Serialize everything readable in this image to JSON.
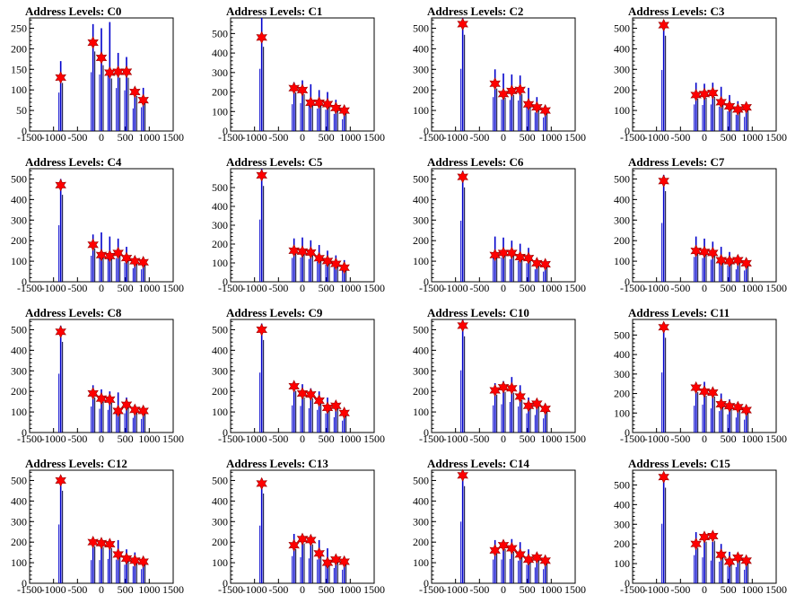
{
  "chart_data": [
    {
      "type": "bar",
      "title": "Address Levels: C0",
      "xlim": [
        -1500,
        1500
      ],
      "ylim": [
        0,
        275
      ],
      "yticks": [
        0,
        50,
        100,
        150,
        200,
        250
      ],
      "x": [
        -850,
        -175,
        0,
        175,
        350,
        525,
        700,
        875
      ],
      "values": [
        170,
        260,
        250,
        265,
        190,
        180,
        100,
        105
      ],
      "markers": [
        130,
        215,
        178,
        142,
        144,
        144,
        95,
        75
      ]
    },
    {
      "type": "bar",
      "title": "Address Levels: C1",
      "xlim": [
        -1500,
        1500
      ],
      "ylim": [
        0,
        580
      ],
      "yticks": [
        0,
        100,
        200,
        300,
        400,
        500
      ],
      "x": [
        -850,
        -175,
        0,
        175,
        350,
        525,
        700,
        875
      ],
      "values": [
        580,
        250,
        260,
        240,
        210,
        200,
        160,
        110
      ],
      "markers": [
        480,
        220,
        210,
        145,
        145,
        138,
        118,
        105
      ]
    },
    {
      "type": "bar",
      "title": "Address Levels: C2",
      "xlim": [
        -1500,
        1500
      ],
      "ylim": [
        0,
        550
      ],
      "yticks": [
        0,
        100,
        200,
        300,
        400,
        500
      ],
      "x": [
        -850,
        -175,
        0,
        175,
        350,
        525,
        700,
        875
      ],
      "values": [
        550,
        300,
        280,
        275,
        270,
        210,
        165,
        120
      ],
      "markers": [
        520,
        230,
        180,
        195,
        200,
        130,
        115,
        100
      ]
    },
    {
      "type": "bar",
      "title": "Address Levels: C3",
      "xlim": [
        -1500,
        1500
      ],
      "ylim": [
        0,
        550
      ],
      "yticks": [
        0,
        100,
        200,
        300,
        400,
        500
      ],
      "x": [
        -850,
        -175,
        0,
        175,
        350,
        525,
        700,
        875
      ],
      "values": [
        540,
        235,
        230,
        235,
        215,
        175,
        145,
        125
      ],
      "markers": [
        515,
        175,
        180,
        185,
        140,
        120,
        105,
        115
      ]
    },
    {
      "type": "bar",
      "title": "Address Levels: C4",
      "xlim": [
        -1500,
        1500
      ],
      "ylim": [
        0,
        550
      ],
      "yticks": [
        0,
        100,
        200,
        300,
        400,
        500
      ],
      "x": [
        -850,
        -175,
        0,
        175,
        350,
        525,
        700,
        875
      ],
      "values": [
        500,
        230,
        240,
        220,
        210,
        170,
        120,
        110
      ],
      "markers": [
        470,
        180,
        130,
        125,
        140,
        115,
        100,
        95
      ]
    },
    {
      "type": "bar",
      "title": "Address Levels: C5",
      "xlim": [
        -1500,
        1500
      ],
      "ylim": [
        0,
        600
      ],
      "yticks": [
        0,
        100,
        200,
        300,
        400,
        500
      ],
      "x": [
        -850,
        -175,
        0,
        175,
        350,
        525,
        700,
        875
      ],
      "values": [
        600,
        230,
        235,
        220,
        195,
        165,
        140,
        115
      ],
      "markers": [
        565,
        165,
        160,
        155,
        125,
        110,
        95,
        75
      ]
    },
    {
      "type": "bar",
      "title": "Address Levels: C6",
      "xlim": [
        -1500,
        1500
      ],
      "ylim": [
        0,
        550
      ],
      "yticks": [
        0,
        100,
        200,
        300,
        400,
        500
      ],
      "x": [
        -850,
        -175,
        0,
        175,
        350,
        525,
        700,
        875
      ],
      "values": [
        540,
        220,
        215,
        200,
        185,
        165,
        110,
        90
      ],
      "markers": [
        510,
        130,
        140,
        140,
        120,
        115,
        90,
        85
      ]
    },
    {
      "type": "bar",
      "title": "Address Levels: C7",
      "xlim": [
        -1500,
        1500
      ],
      "ylim": [
        0,
        550
      ],
      "yticks": [
        0,
        100,
        200,
        300,
        400,
        500
      ],
      "x": [
        -850,
        -175,
        0,
        175,
        350,
        525,
        700,
        875
      ],
      "values": [
        520,
        220,
        210,
        195,
        170,
        145,
        110,
        100
      ],
      "markers": [
        490,
        150,
        145,
        140,
        105,
        100,
        105,
        90
      ]
    },
    {
      "type": "bar",
      "title": "Address Levels: C8",
      "xlim": [
        -1500,
        1500
      ],
      "ylim": [
        0,
        550
      ],
      "yticks": [
        0,
        100,
        200,
        300,
        400,
        500
      ],
      "x": [
        -850,
        -175,
        0,
        175,
        350,
        525,
        700,
        875
      ],
      "values": [
        520,
        230,
        210,
        200,
        195,
        170,
        130,
        120
      ],
      "markers": [
        490,
        190,
        165,
        160,
        105,
        135,
        110,
        105
      ]
    },
    {
      "type": "bar",
      "title": "Address Levels: C9",
      "xlim": [
        -1500,
        1500
      ],
      "ylim": [
        0,
        550
      ],
      "yticks": [
        0,
        100,
        200,
        300,
        400,
        500
      ],
      "x": [
        -850,
        -175,
        0,
        175,
        350,
        525,
        700,
        875
      ],
      "values": [
        530,
        240,
        235,
        215,
        200,
        170,
        135,
        105
      ],
      "markers": [
        500,
        225,
        190,
        185,
        155,
        120,
        130,
        95
      ]
    },
    {
      "type": "bar",
      "title": "Address Levels: C10",
      "xlim": [
        -1500,
        1500
      ],
      "ylim": [
        0,
        550
      ],
      "yticks": [
        0,
        100,
        200,
        300,
        400,
        500
      ],
      "x": [
        -850,
        -175,
        0,
        175,
        350,
        525,
        700,
        875
      ],
      "values": [
        550,
        240,
        250,
        270,
        230,
        170,
        155,
        125
      ],
      "markers": [
        520,
        205,
        220,
        215,
        175,
        130,
        140,
        115
      ]
    },
    {
      "type": "bar",
      "title": "Address Levels: C11",
      "xlim": [
        -1500,
        1500
      ],
      "ylim": [
        0,
        580
      ],
      "yticks": [
        0,
        100,
        200,
        300,
        400,
        500
      ],
      "x": [
        -850,
        -175,
        0,
        175,
        350,
        525,
        700,
        875
      ],
      "values": [
        560,
        250,
        260,
        225,
        200,
        170,
        140,
        120
      ],
      "markers": [
        540,
        230,
        210,
        205,
        145,
        135,
        130,
        115
      ]
    },
    {
      "type": "bar",
      "title": "Address Levels: C12",
      "xlim": [
        -1500,
        1500
      ],
      "ylim": [
        0,
        550
      ],
      "yticks": [
        0,
        100,
        200,
        300,
        400,
        500
      ],
      "x": [
        -850,
        -175,
        0,
        175,
        350,
        525,
        700,
        875
      ],
      "values": [
        520,
        205,
        205,
        215,
        210,
        165,
        150,
        125
      ],
      "markers": [
        500,
        200,
        195,
        190,
        140,
        120,
        110,
        105
      ]
    },
    {
      "type": "bar",
      "title": "Address Levels: C13",
      "xlim": [
        -1500,
        1500
      ],
      "ylim": [
        0,
        550
      ],
      "yticks": [
        0,
        100,
        200,
        300,
        400,
        500
      ],
      "x": [
        -850,
        -175,
        0,
        175,
        350,
        525,
        700,
        875
      ],
      "values": [
        510,
        240,
        230,
        220,
        210,
        170,
        135,
        120
      ],
      "markers": [
        485,
        185,
        215,
        210,
        145,
        100,
        115,
        105
      ]
    },
    {
      "type": "bar",
      "title": "Address Levels: C14",
      "xlim": [
        -1500,
        1500
      ],
      "ylim": [
        0,
        550
      ],
      "yticks": [
        0,
        100,
        200,
        300,
        400,
        500
      ],
      "x": [
        -850,
        -175,
        0,
        175,
        350,
        525,
        700,
        875
      ],
      "values": [
        545,
        210,
        210,
        215,
        200,
        165,
        140,
        125
      ],
      "markers": [
        525,
        160,
        185,
        170,
        140,
        115,
        125,
        110
      ]
    },
    {
      "type": "bar",
      "title": "Address Levels: C15",
      "xlim": [
        -1500,
        1500
      ],
      "ylim": [
        0,
        575
      ],
      "yticks": [
        0,
        100,
        200,
        300,
        400,
        500
      ],
      "x": [
        -850,
        -175,
        0,
        175,
        350,
        525,
        700,
        875
      ],
      "values": [
        550,
        260,
        240,
        210,
        200,
        160,
        150,
        125
      ],
      "markers": [
        540,
        200,
        235,
        240,
        145,
        110,
        130,
        115
      ]
    }
  ],
  "axis": {
    "xticks": [
      -1500,
      -1000,
      -500,
      0,
      500,
      1000,
      1500
    ],
    "bar_color": "#0000cc",
    "marker_color": "#ff0000"
  }
}
